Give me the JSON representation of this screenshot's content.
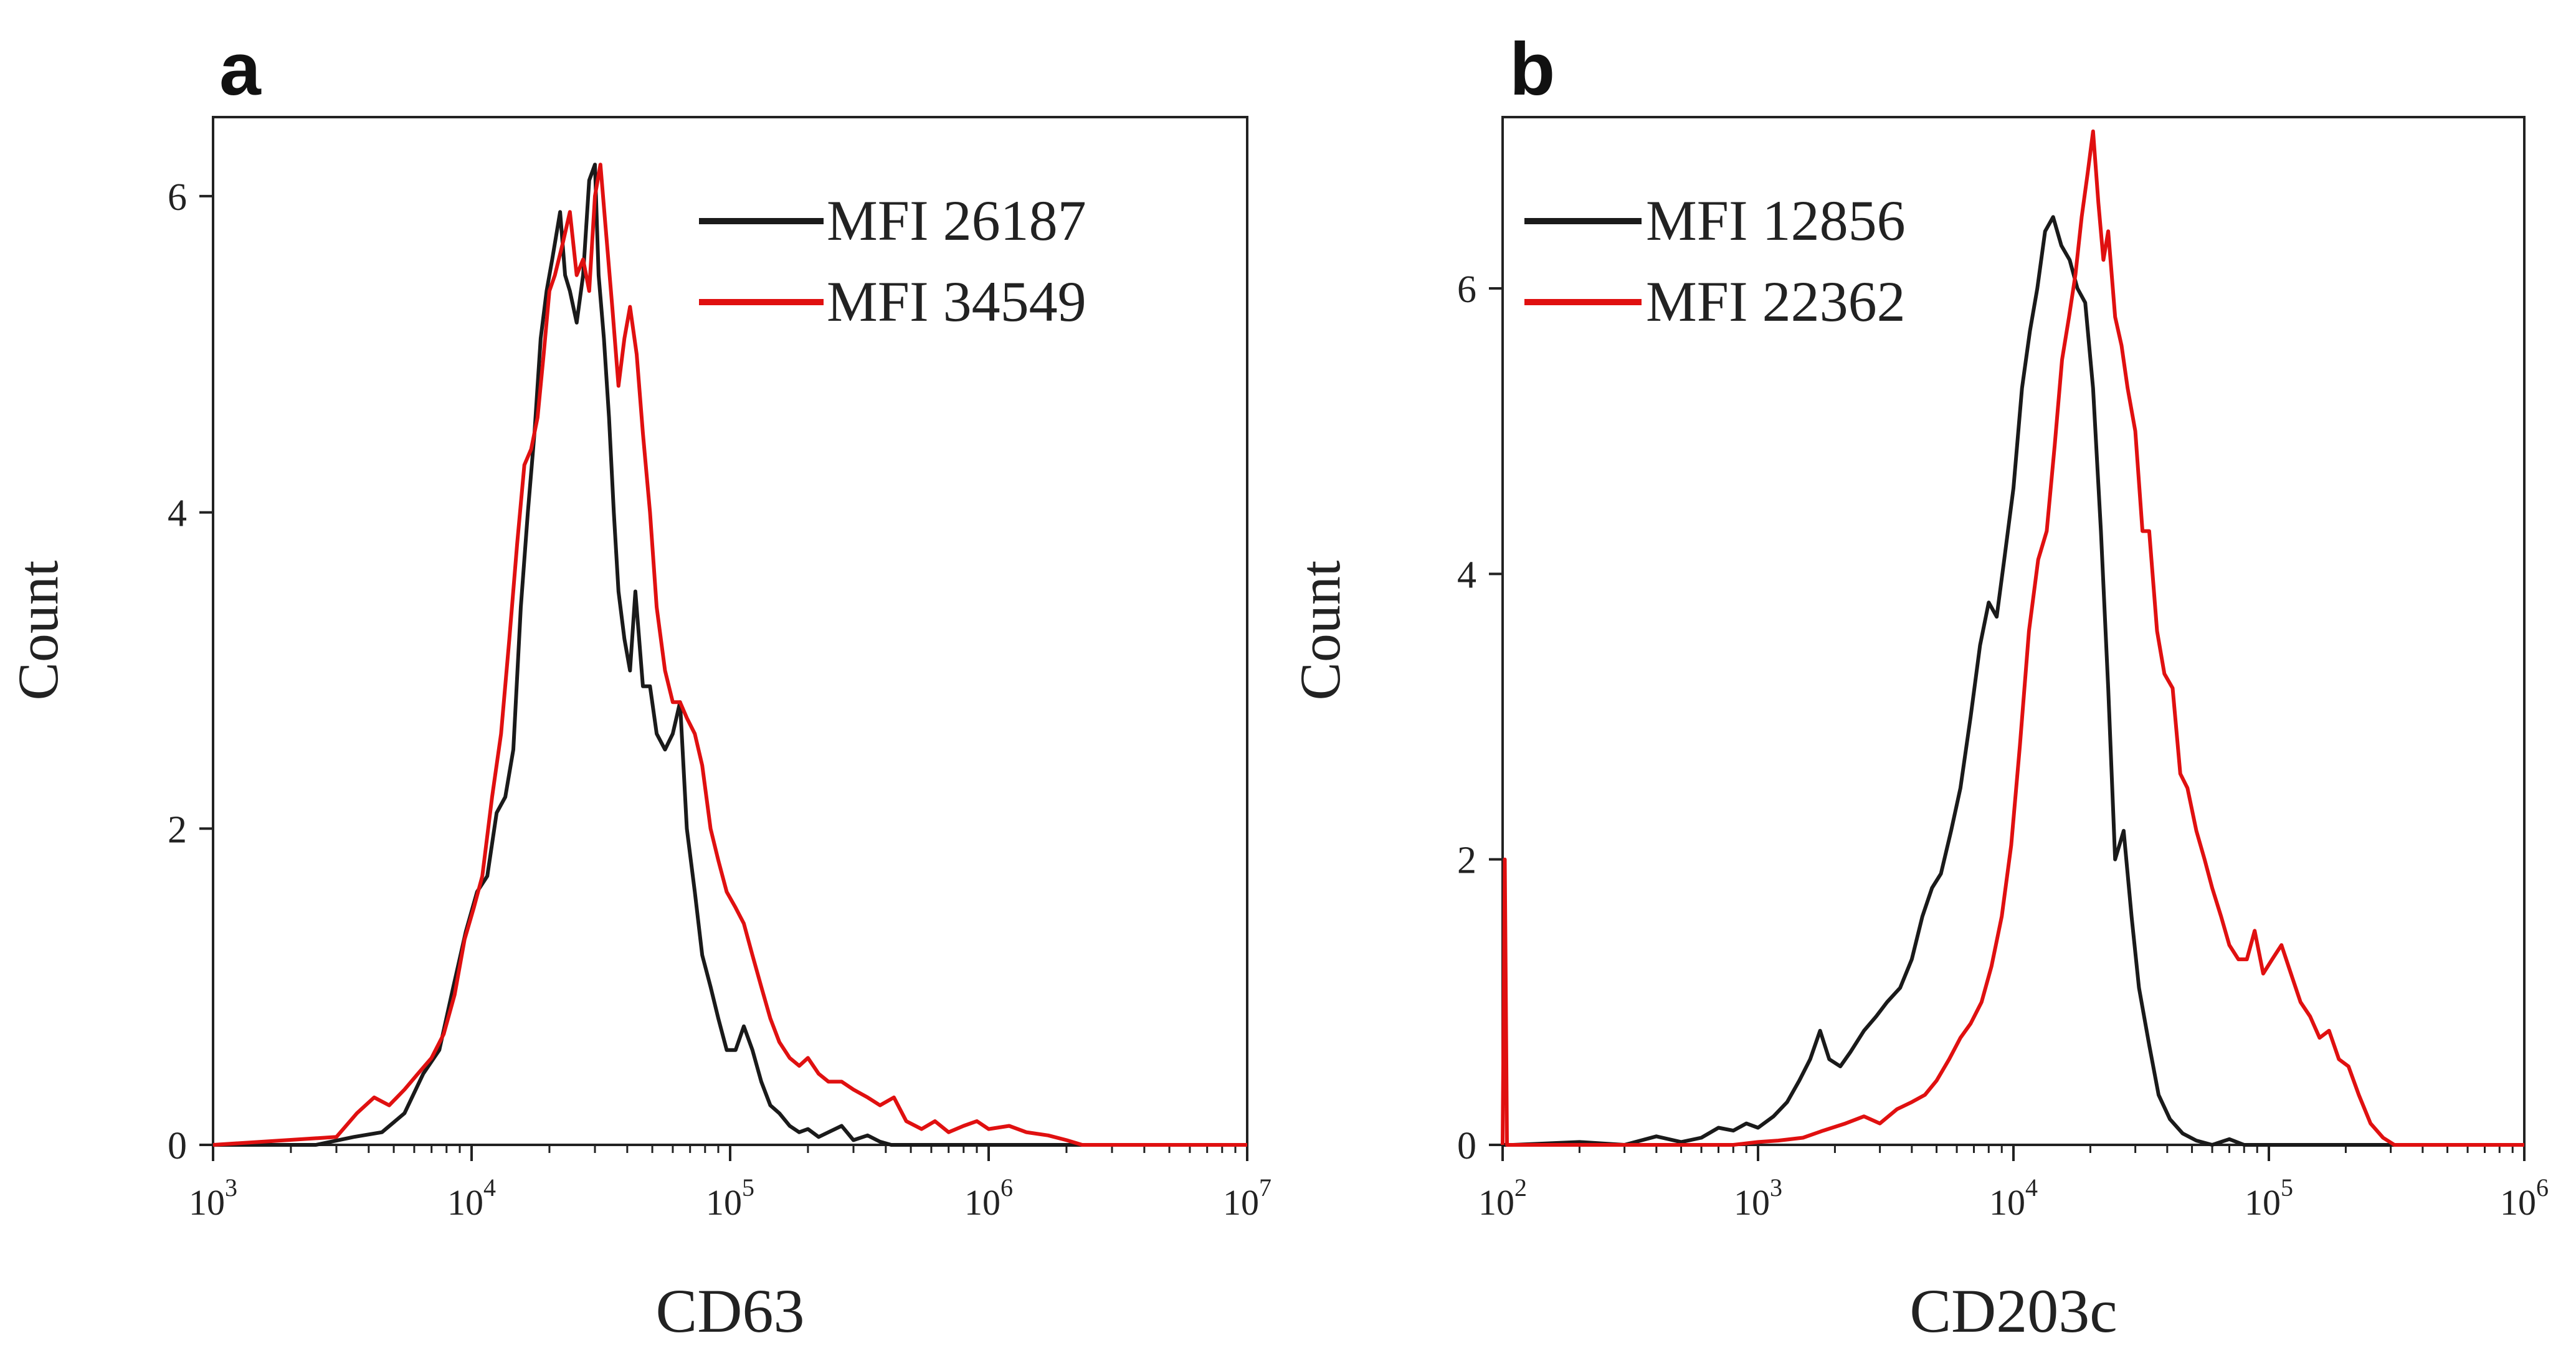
{
  "colors": {
    "black_series": "#1a1a1a",
    "red_series": "#e01010",
    "axis": "#222222"
  },
  "chart_data": [
    {
      "panel": "a",
      "type": "line",
      "xlabel": "CD63",
      "ylabel": "Count",
      "xscale": "log",
      "xlim": [
        1000,
        10000000
      ],
      "ylim": [
        0,
        6.5
      ],
      "xticks": [
        {
          "value": 1000,
          "base": "10",
          "exp": "3"
        },
        {
          "value": 10000,
          "base": "10",
          "exp": "4"
        },
        {
          "value": 100000,
          "base": "10",
          "exp": "5"
        },
        {
          "value": 1000000,
          "base": "10",
          "exp": "6"
        },
        {
          "value": 10000000,
          "base": "10",
          "exp": "7"
        }
      ],
      "yticks": [
        0,
        2,
        4,
        6
      ],
      "grid": false,
      "legend_position": "top-right",
      "series": [
        {
          "name": "MFI 26187",
          "color": "#1a1a1a",
          "x": [
            2500,
            3500,
            4500,
            5500,
            6500,
            7500,
            8500,
            9500,
            10500,
            11500,
            12500,
            13500,
            14500,
            15500,
            16500,
            17500,
            18500,
            19500,
            20500,
            22000,
            23000,
            24000,
            25500,
            27000,
            28500,
            30000,
            31000,
            32500,
            34000,
            35500,
            37000,
            39000,
            41000,
            43000,
            46000,
            49000,
            52000,
            56000,
            60000,
            64000,
            68000,
            73000,
            78000,
            84000,
            90000,
            97000,
            105000,
            113000,
            122000,
            132000,
            143000,
            155000,
            170000,
            185000,
            200000,
            220000,
            240000,
            270000,
            300000,
            340000,
            380000,
            420000,
            500000
          ],
          "values": [
            0.0,
            0.05,
            0.08,
            0.2,
            0.45,
            0.6,
            1.0,
            1.35,
            1.6,
            1.7,
            2.1,
            2.2,
            2.5,
            3.4,
            4.0,
            4.5,
            5.1,
            5.4,
            5.6,
            5.9,
            5.5,
            5.4,
            5.2,
            5.5,
            6.1,
            6.2,
            5.5,
            5.1,
            4.6,
            4.0,
            3.5,
            3.2,
            3.0,
            3.5,
            2.9,
            2.9,
            2.6,
            2.5,
            2.6,
            2.8,
            2.0,
            1.6,
            1.2,
            1.0,
            0.8,
            0.6,
            0.6,
            0.75,
            0.6,
            0.4,
            0.25,
            0.2,
            0.12,
            0.08,
            0.1,
            0.05,
            0.08,
            0.12,
            0.03,
            0.06,
            0.02,
            0.0,
            0.0
          ]
        },
        {
          "name": "MFI 34549",
          "color": "#e01010",
          "x": [
            3000,
            3600,
            4200,
            4800,
            5500,
            6200,
            7000,
            7800,
            8600,
            9400,
            10200,
            11000,
            12000,
            13000,
            14000,
            15000,
            16000,
            17000,
            18000,
            19000,
            20000,
            21000,
            22500,
            24000,
            25500,
            27000,
            28500,
            30000,
            31500,
            33000,
            35000,
            37000,
            39000,
            41000,
            43500,
            46000,
            49000,
            52000,
            56000,
            60000,
            64000,
            68000,
            73000,
            78000,
            84000,
            90000,
            97000,
            105000,
            113000,
            122000,
            132000,
            143000,
            155000,
            170000,
            185000,
            200000,
            220000,
            240000,
            270000,
            300000,
            340000,
            380000,
            430000,
            480000,
            550000,
            620000,
            700000,
            800000,
            900000,
            1000000,
            1200000,
            1400000,
            1700000,
            2000000,
            2300000
          ],
          "values": [
            0.05,
            0.2,
            0.3,
            0.25,
            0.35,
            0.45,
            0.55,
            0.7,
            0.95,
            1.3,
            1.5,
            1.7,
            2.2,
            2.6,
            3.2,
            3.8,
            4.3,
            4.4,
            4.6,
            5.0,
            5.4,
            5.5,
            5.7,
            5.9,
            5.5,
            5.6,
            5.4,
            6.0,
            6.2,
            5.8,
            5.3,
            4.8,
            5.1,
            5.3,
            5.0,
            4.5,
            4.0,
            3.4,
            3.0,
            2.8,
            2.8,
            2.7,
            2.6,
            2.4,
            2.0,
            1.8,
            1.6,
            1.5,
            1.4,
            1.2,
            1.0,
            0.8,
            0.65,
            0.55,
            0.5,
            0.55,
            0.45,
            0.4,
            0.4,
            0.35,
            0.3,
            0.25,
            0.3,
            0.15,
            0.1,
            0.15,
            0.08,
            0.12,
            0.15,
            0.1,
            0.12,
            0.08,
            0.06,
            0.03,
            0.0
          ]
        }
      ]
    },
    {
      "panel": "b",
      "type": "line",
      "xlabel": "CD203c",
      "ylabel": "Count",
      "xscale": "log",
      "xlim": [
        100,
        1000000
      ],
      "ylim": [
        0,
        7.2
      ],
      "xticks": [
        {
          "value": 100,
          "base": "10",
          "exp": "2"
        },
        {
          "value": 1000,
          "base": "10",
          "exp": "3"
        },
        {
          "value": 10000,
          "base": "10",
          "exp": "4"
        },
        {
          "value": 100000,
          "base": "10",
          "exp": "5"
        },
        {
          "value": 1000000,
          "base": "10",
          "exp": "6"
        }
      ],
      "yticks": [
        0,
        2,
        4,
        6
      ],
      "grid": false,
      "legend_position": "top-left",
      "series": [
        {
          "name": "MFI 12856",
          "color": "#1a1a1a",
          "x": [
            110,
            200,
            300,
            400,
            500,
            600,
            700,
            800,
            900,
            1000,
            1150,
            1300,
            1450,
            1600,
            1750,
            1900,
            2100,
            2300,
            2600,
            2900,
            3200,
            3600,
            4000,
            4400,
            4800,
            5200,
            5700,
            6200,
            6800,
            7400,
            8000,
            8600,
            9200,
            10000,
            10800,
            11600,
            12400,
            13300,
            14300,
            15400,
            16600,
            17800,
            19100,
            20500,
            22000,
            23500,
            25000,
            27000,
            29000,
            31000,
            34000,
            37000,
            41000,
            46000,
            52000,
            60000,
            70000,
            80000
          ],
          "values": [
            0.0,
            0.02,
            0.0,
            0.06,
            0.02,
            0.05,
            0.12,
            0.1,
            0.15,
            0.12,
            0.2,
            0.3,
            0.45,
            0.6,
            0.8,
            0.6,
            0.55,
            0.65,
            0.8,
            0.9,
            1.0,
            1.1,
            1.3,
            1.6,
            1.8,
            1.9,
            2.2,
            2.5,
            3.0,
            3.5,
            3.8,
            3.7,
            4.1,
            4.6,
            5.3,
            5.7,
            6.0,
            6.4,
            6.5,
            6.3,
            6.2,
            6.0,
            5.9,
            5.3,
            4.3,
            3.2,
            2.0,
            2.2,
            1.6,
            1.1,
            0.7,
            0.35,
            0.18,
            0.08,
            0.03,
            0.0,
            0.04,
            0.0
          ]
        },
        {
          "name": "MFI 22362",
          "color": "#e01010",
          "x": [
            102,
            104,
            107,
            110,
            300,
            500,
            800,
            1000,
            1200,
            1500,
            1800,
            2200,
            2600,
            3000,
            3500,
            4000,
            4500,
            5000,
            5600,
            6200,
            6800,
            7500,
            8200,
            9000,
            9800,
            10600,
            11500,
            12500,
            13500,
            14500,
            15500,
            16500,
            17500,
            18500,
            19500,
            20500,
            21500,
            22500,
            23500,
            25000,
            26500,
            28000,
            30000,
            32000,
            34000,
            36500,
            39000,
            42000,
            45000,
            48000,
            52000,
            56000,
            60000,
            65000,
            70000,
            76000,
            82000,
            88000,
            95000,
            103000,
            112000,
            122000,
            133000,
            145000,
            158000,
            172000,
            188000,
            205000,
            225000,
            250000,
            280000,
            310000
          ],
          "values": [
            2.0,
            0.0,
            0.0,
            0.0,
            0.0,
            0.0,
            0.0,
            0.02,
            0.03,
            0.05,
            0.1,
            0.15,
            0.2,
            0.15,
            0.25,
            0.3,
            0.35,
            0.45,
            0.6,
            0.75,
            0.85,
            1.0,
            1.25,
            1.6,
            2.1,
            2.8,
            3.6,
            4.1,
            4.3,
            4.9,
            5.5,
            5.8,
            6.1,
            6.5,
            6.8,
            7.1,
            6.6,
            6.2,
            6.4,
            5.8,
            5.6,
            5.3,
            5.0,
            4.3,
            4.3,
            3.6,
            3.3,
            3.2,
            2.6,
            2.5,
            2.2,
            2.0,
            1.8,
            1.6,
            1.4,
            1.3,
            1.3,
            1.5,
            1.2,
            1.3,
            1.4,
            1.2,
            1.0,
            0.9,
            0.75,
            0.8,
            0.6,
            0.55,
            0.35,
            0.15,
            0.05,
            0.0
          ]
        }
      ]
    }
  ]
}
